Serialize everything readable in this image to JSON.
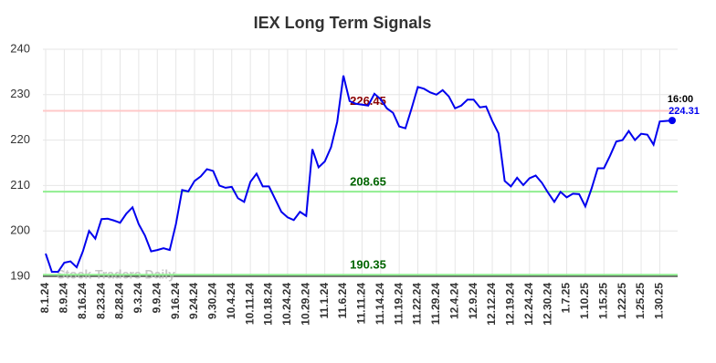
{
  "chart_data": {
    "type": "line",
    "title": "IEX Long Term Signals",
    "watermark": "Stock Traders Daily",
    "last_label": "16:00",
    "categories": [
      "8.1.24",
      null,
      null,
      "8.9.24",
      null,
      null,
      "8.16.24",
      null,
      null,
      "8.23.24",
      null,
      null,
      "8.28.24",
      null,
      null,
      "9.3.24",
      null,
      null,
      "9.9.24",
      null,
      null,
      "9.16.24",
      null,
      null,
      "9.24.24",
      null,
      null,
      "9.30.24",
      null,
      null,
      "10.4.24",
      null,
      null,
      "10.11.24",
      null,
      null,
      "10.18.24",
      null,
      null,
      "10.24.24",
      null,
      null,
      "10.29.24",
      null,
      null,
      "11.1.24",
      null,
      null,
      "11.6.24",
      null,
      null,
      "11.11.24",
      null,
      null,
      "11.14.24",
      null,
      null,
      "11.19.24",
      null,
      null,
      "11.22.24",
      null,
      null,
      "11.29.24",
      null,
      null,
      "12.4.24",
      null,
      null,
      "12.9.24",
      null,
      null,
      "12.12.24",
      null,
      null,
      "12.19.24",
      null,
      null,
      "12.24.24",
      null,
      null,
      "12.30.24",
      null,
      null,
      "1.7.25",
      null,
      null,
      "1.10.25",
      null,
      null,
      "1.15.25",
      null,
      null,
      "1.22.25",
      null,
      null,
      "1.25.25",
      null,
      null,
      "1.30.25",
      null,
      null
    ],
    "series": [
      {
        "color": "#0000ee",
        "values": [
          195,
          191,
          191,
          193,
          193.3,
          192,
          195.5,
          200,
          198.3,
          202.6,
          202.7,
          202.3,
          201.8,
          203.8,
          205.2,
          201.5,
          199,
          195.5,
          195.8,
          196.2,
          195.8,
          201.5,
          209,
          208.7,
          211,
          212,
          213.6,
          213.2,
          210,
          209.5,
          209.7,
          207.2,
          206.4,
          210.8,
          212.6,
          209.8,
          209.8,
          207,
          204.2,
          203,
          202.4,
          204.2,
          203.3,
          218,
          214,
          215.3,
          218.4,
          224,
          234.2,
          228.6,
          228,
          227.8,
          227.6,
          230.2,
          229,
          227,
          226,
          223,
          222.6,
          227,
          231.7,
          231.3,
          230.5,
          230,
          231,
          229.6,
          227,
          227.6,
          228.9,
          228.9,
          227.2,
          227.4,
          224.2,
          221.5,
          211,
          209.8,
          211.7,
          210.1,
          211.6,
          212.2,
          210.6,
          208.4,
          206.4,
          208.6,
          207.4,
          208.2,
          208.1,
          205.4,
          209.3,
          213.8,
          213.8,
          216.6,
          219.7,
          220,
          222,
          220,
          221.4,
          221.2,
          219,
          224.1,
          224.2,
          224.31
        ]
      }
    ],
    "hlines": [
      {
        "value": 226.45,
        "color": "#ffc8c8",
        "label_color": "#8b0000"
      },
      {
        "value": 208.65,
        "color": "#90ee90",
        "label_color": "#006400"
      },
      {
        "value": 190.35,
        "color": "#90ee90",
        "label_color": "#006400"
      }
    ],
    "ylim": [
      190,
      240
    ],
    "yticks": [
      190,
      200,
      210,
      220,
      230,
      240
    ],
    "grid": true
  }
}
